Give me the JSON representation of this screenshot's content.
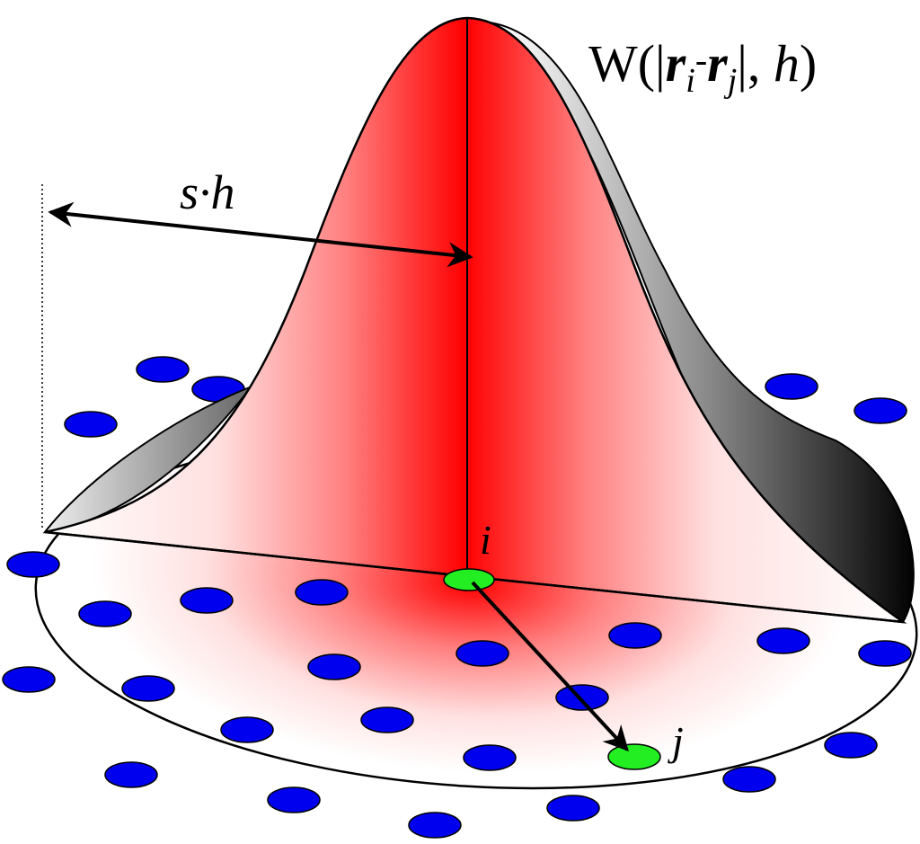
{
  "kernel_label": {
    "parts": [
      "W(|",
      "r",
      "i",
      "-",
      "r",
      "j",
      "|, ",
      "h",
      ")"
    ]
  },
  "width_label": "s·h",
  "particle_i": "i",
  "particle_j": "j"
}
